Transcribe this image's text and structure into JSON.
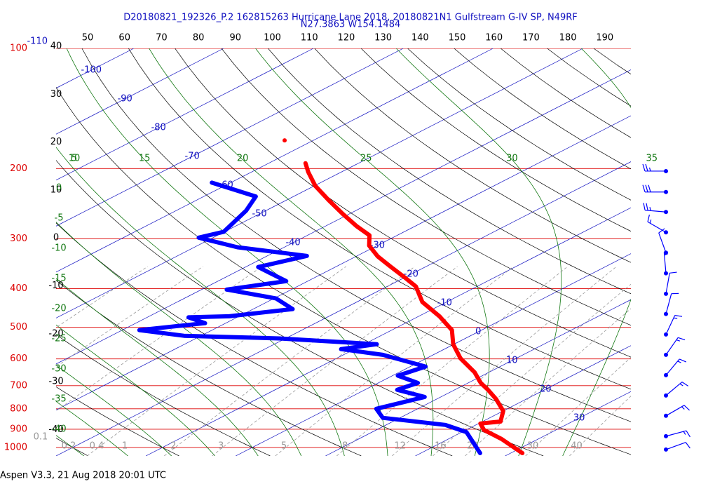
{
  "chart_data": {
    "type": "skewt",
    "title": "D20180821_192326_P.2 162815263 Hurricane Lane 2018, 20180821N1 Gulfstream G-IV SP, N49RF",
    "subtitle": "N27.3863 W154.1484",
    "footer": "Aspen V3.3, 21 Aug 2018  20:01 UTC",
    "yscale": "log",
    "ylim": [
      1050,
      100
    ],
    "yticks": [
      100,
      200,
      300,
      400,
      500,
      600,
      700,
      800,
      900,
      1000
    ],
    "isobar_color": "#dd0000",
    "xlim": [
      -20,
      44
    ],
    "xticks": [
      -110,
      -100,
      -90,
      -80,
      -70,
      -60,
      -50,
      -40,
      -30,
      -20,
      -10,
      0,
      10,
      20,
      30
    ],
    "isotherm_color": "#1010c0",
    "dry_adiabats": {
      "color": "#000000",
      "top_labels": [
        50,
        60,
        70,
        80,
        90,
        100,
        110,
        120,
        130,
        140,
        150,
        160,
        170,
        180,
        190
      ],
      "left_labels": [
        40,
        30,
        20,
        10,
        0,
        -10,
        -20,
        -30,
        -40
      ]
    },
    "moist_adiabats": {
      "color": "#117711",
      "top_labels": [
        5,
        10,
        15,
        20,
        25,
        30,
        35
      ],
      "left_labels": [
        0,
        -5,
        -10,
        -15,
        -20,
        -25,
        -30,
        -35,
        -40
      ]
    },
    "mixing_ratio": {
      "color": "#999999",
      "labels": [
        0.1,
        0.2,
        0.4,
        1,
        2,
        3,
        5,
        8,
        12,
        16,
        20,
        30,
        40
      ]
    },
    "series": [
      {
        "color": "#ff0000",
        "pressure": [
          194,
          204,
          221,
          240,
          260,
          279,
          294,
          312,
          332,
          353,
          375,
          395,
          432,
          469,
          508,
          551,
          598,
          648,
          689,
          717,
          756,
          810,
          861,
          871,
          904,
          952,
          1033
        ],
        "values": [
          -55.9,
          -53.7,
          -49.9,
          -45.3,
          -40.7,
          -36.5,
          -33.1,
          -30.9,
          -27.6,
          -23.8,
          -20.0,
          -16.8,
          -12.7,
          -7.7,
          -3.3,
          -0.1,
          3.8,
          8.4,
          11.4,
          13.7,
          16.6,
          20.0,
          22.0,
          20.2,
          22.0,
          25.9,
          31.3
        ]
      },
      {
        "color": "#0000ff",
        "pressure": [
          217,
          235,
          255,
          288,
          298,
          315,
          331,
          353,
          383,
          402,
          423,
          450,
          469,
          472,
          488,
          508,
          525,
          533,
          551,
          567,
          586,
          627,
          661,
          689,
          717,
          747,
          800,
          843,
          878,
          915,
          1033
        ],
        "values": [
          -62.1,
          -54.2,
          -52.2,
          -50.1,
          -51.6,
          -45.2,
          -35.6,
          -38.6,
          -32.4,
          -37.2,
          -29.8,
          -25.6,
          -31.1,
          -35.4,
          -32.3,
          -38.1,
          -31.9,
          -20.7,
          -8.6,
          -11.5,
          -5.6,
          1.7,
          0.6,
          4.4,
          3.6,
          8.2,
          5.4,
          8.1,
          16.6,
          20.5,
          26.6
        ]
      },
      {
        "color": "#ff0000",
        "pressure": [
          170
        ],
        "values": [
          -63.2
        ]
      }
    ],
    "wind": {
      "color": "#0000ff",
      "pressure": [
        203,
        229,
        257,
        289,
        325,
        366,
        412,
        463,
        521,
        586,
        659,
        741,
        833,
        937,
        1012
      ],
      "speed": [
        25,
        30,
        25,
        15,
        10,
        5,
        10,
        10,
        15,
        15,
        15,
        15,
        15,
        15,
        10
      ],
      "direction": [
        270,
        270,
        275,
        300,
        340,
        355,
        10,
        15,
        25,
        35,
        40,
        50,
        60,
        75,
        70
      ]
    }
  }
}
